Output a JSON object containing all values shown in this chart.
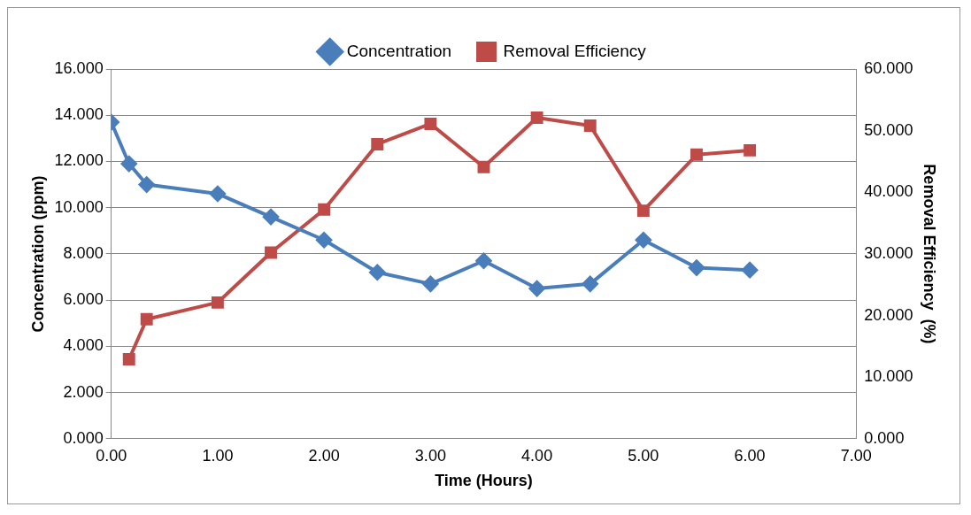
{
  "chart_data": {
    "type": "line",
    "xlabel": "Time (Hours)",
    "ylabel": "Concentration (ppm)",
    "y2label": "Removal Efficiency  (%)",
    "xlim": [
      0,
      7
    ],
    "xticks": [
      {
        "value": 0,
        "label": "0.00"
      },
      {
        "value": 1,
        "label": "1.00"
      },
      {
        "value": 2,
        "label": "2.00"
      },
      {
        "value": 3,
        "label": "3.00"
      },
      {
        "value": 4,
        "label": "4.00"
      },
      {
        "value": 5,
        "label": "5.00"
      },
      {
        "value": 6,
        "label": "6.00"
      },
      {
        "value": 7,
        "label": "7.00"
      }
    ],
    "ylim": [
      0,
      16
    ],
    "yticks": [
      {
        "value": 0,
        "label": "0.000"
      },
      {
        "value": 2,
        "label": "2.000"
      },
      {
        "value": 4,
        "label": "4.000"
      },
      {
        "value": 6,
        "label": "6.000"
      },
      {
        "value": 8,
        "label": "8.000"
      },
      {
        "value": 10,
        "label": "10.000"
      },
      {
        "value": 12,
        "label": "12.000"
      },
      {
        "value": 14,
        "label": "14.000"
      },
      {
        "value": 16,
        "label": "16.000"
      }
    ],
    "y2lim": [
      0,
      60
    ],
    "y2ticks": [
      {
        "value": 0,
        "label": "0.000"
      },
      {
        "value": 10,
        "label": "10.000"
      },
      {
        "value": 20,
        "label": "20.000"
      },
      {
        "value": 30,
        "label": "30.000"
      },
      {
        "value": 40,
        "label": "40.000"
      },
      {
        "value": 50,
        "label": "50.000"
      },
      {
        "value": 60,
        "label": "60.000"
      }
    ],
    "grid": "y",
    "legend": "top",
    "line_style": "solid",
    "series": [
      {
        "name": "Concentration",
        "color": "#4a7ebb",
        "marker": "diamond",
        "x": [
          0,
          0.167,
          0.333,
          1,
          1.5,
          2,
          2.5,
          3,
          3.5,
          4,
          4.5,
          5,
          5.5,
          6
        ],
        "values": [
          13.7,
          11.9,
          11.0,
          10.6,
          9.6,
          8.6,
          7.2,
          6.7,
          7.7,
          6.5,
          6.7,
          8.6,
          7.4,
          7.3
        ]
      },
      {
        "name": "Removal Efficiency",
        "color": "#be4b48",
        "marker": "square",
        "axis": "y2",
        "x": [
          0.167,
          0.333,
          1,
          1.5,
          2,
          2.5,
          3,
          3.5,
          4,
          4.5,
          5,
          5.5,
          6
        ],
        "values": [
          12.9,
          19.4,
          22.1,
          30.2,
          37.2,
          47.8,
          51.1,
          44.1,
          52.1,
          50.8,
          37.0,
          46.1,
          46.8
        ]
      }
    ]
  }
}
